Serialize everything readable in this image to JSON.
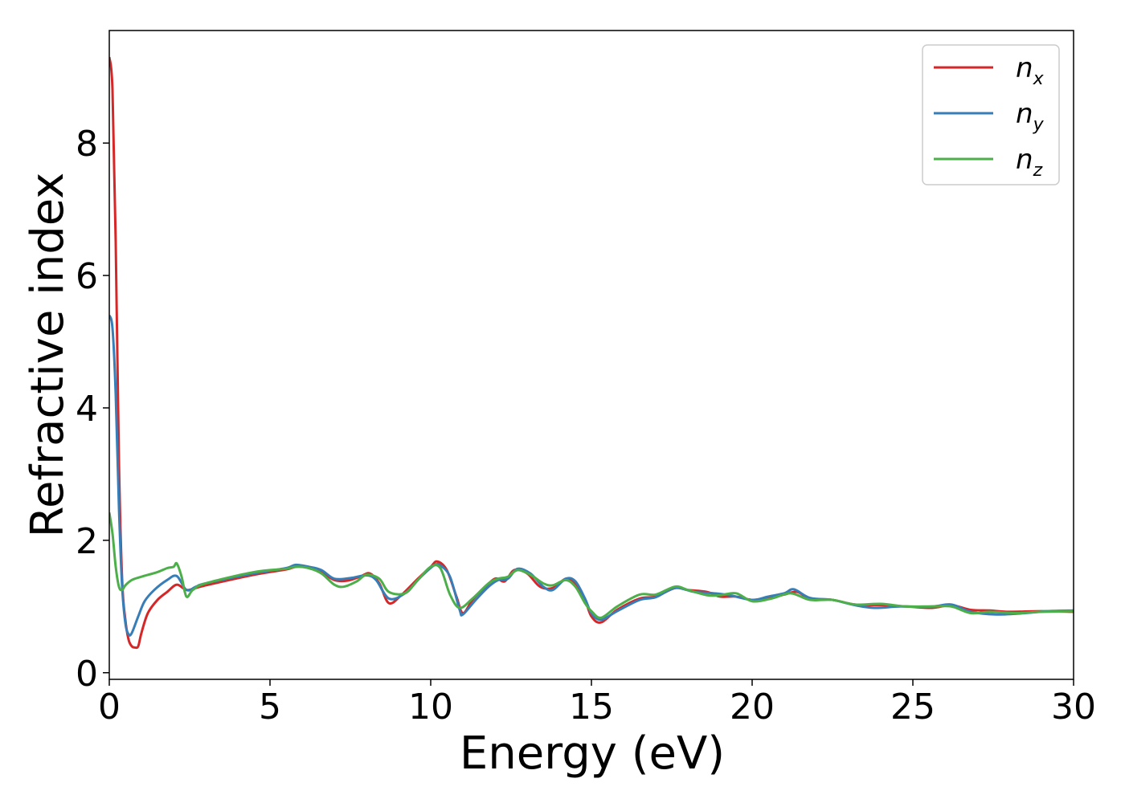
{
  "chart_data": {
    "type": "line",
    "xlabel": "Energy (eV)",
    "ylabel": "Refractive index",
    "xlim": [
      0,
      30
    ],
    "ylim": [
      -0.1,
      9.7
    ],
    "xticks": [
      0,
      5,
      10,
      15,
      20,
      25,
      30
    ],
    "yticks": [
      0,
      2,
      4,
      6,
      8
    ],
    "xtick_labels": [
      "0",
      "5",
      "10",
      "15",
      "20",
      "25",
      "30"
    ],
    "ytick_labels": [
      "0",
      "2",
      "4",
      "6",
      "8"
    ],
    "grid": false,
    "legend_position": "top-right",
    "series": [
      {
        "name": "n_x",
        "label_base": "n",
        "label_sub": "x",
        "color": "#d62728",
        "points": [
          [
            0,
            9.3
          ],
          [
            0.1,
            8.8
          ],
          [
            0.2,
            6.5
          ],
          [
            0.3,
            3.2
          ],
          [
            0.4,
            1.4
          ],
          [
            0.5,
            0.8
          ],
          [
            0.6,
            0.5
          ],
          [
            0.7,
            0.4
          ],
          [
            0.8,
            0.38
          ],
          [
            0.9,
            0.4
          ],
          [
            1.0,
            0.6
          ],
          [
            1.2,
            0.9
          ],
          [
            1.5,
            1.1
          ],
          [
            1.8,
            1.22
          ],
          [
            2.1,
            1.33
          ],
          [
            2.4,
            1.25
          ],
          [
            2.7,
            1.28
          ],
          [
            3.0,
            1.32
          ],
          [
            4.5,
            1.48
          ],
          [
            5.5,
            1.56
          ],
          [
            5.8,
            1.6
          ],
          [
            6.2,
            1.6
          ],
          [
            6.6,
            1.52
          ],
          [
            7.0,
            1.4
          ],
          [
            7.4,
            1.39
          ],
          [
            7.8,
            1.45
          ],
          [
            8.1,
            1.5
          ],
          [
            8.4,
            1.35
          ],
          [
            8.7,
            1.05
          ],
          [
            9.1,
            1.18
          ],
          [
            9.6,
            1.42
          ],
          [
            10.0,
            1.6
          ],
          [
            10.2,
            1.68
          ],
          [
            10.5,
            1.55
          ],
          [
            10.8,
            1.15
          ],
          [
            11.0,
            0.9
          ],
          [
            11.3,
            1.1
          ],
          [
            11.6,
            1.25
          ],
          [
            12.0,
            1.42
          ],
          [
            12.3,
            1.38
          ],
          [
            12.6,
            1.55
          ],
          [
            13.0,
            1.5
          ],
          [
            13.4,
            1.3
          ],
          [
            13.8,
            1.28
          ],
          [
            14.2,
            1.42
          ],
          [
            14.5,
            1.35
          ],
          [
            14.8,
            1.1
          ],
          [
            15.0,
            0.85
          ],
          [
            15.3,
            0.76
          ],
          [
            15.8,
            0.95
          ],
          [
            16.5,
            1.12
          ],
          [
            17.0,
            1.15
          ],
          [
            17.6,
            1.28
          ],
          [
            18.0,
            1.25
          ],
          [
            18.6,
            1.22
          ],
          [
            19.0,
            1.15
          ],
          [
            19.5,
            1.15
          ],
          [
            20.0,
            1.1
          ],
          [
            20.5,
            1.12
          ],
          [
            21.0,
            1.18
          ],
          [
            21.4,
            1.22
          ],
          [
            21.8,
            1.12
          ],
          [
            22.5,
            1.1
          ],
          [
            23.2,
            1.03
          ],
          [
            24.0,
            1.02
          ],
          [
            24.8,
            1.0
          ],
          [
            25.6,
            0.98
          ],
          [
            26.2,
            1.02
          ],
          [
            26.8,
            0.95
          ],
          [
            27.4,
            0.94
          ],
          [
            28.0,
            0.92
          ],
          [
            29.0,
            0.93
          ],
          [
            30.0,
            0.92
          ]
        ]
      },
      {
        "name": "n_y",
        "label_base": "n",
        "label_sub": "y",
        "color": "#377eb8",
        "points": [
          [
            0,
            5.4
          ],
          [
            0.1,
            5.2
          ],
          [
            0.2,
            4.2
          ],
          [
            0.3,
            2.5
          ],
          [
            0.4,
            1.3
          ],
          [
            0.5,
            0.75
          ],
          [
            0.6,
            0.58
          ],
          [
            0.7,
            0.6
          ],
          [
            0.9,
            0.85
          ],
          [
            1.1,
            1.08
          ],
          [
            1.4,
            1.25
          ],
          [
            1.8,
            1.4
          ],
          [
            2.1,
            1.46
          ],
          [
            2.4,
            1.25
          ],
          [
            2.7,
            1.3
          ],
          [
            3.0,
            1.35
          ],
          [
            4.5,
            1.5
          ],
          [
            5.5,
            1.58
          ],
          [
            5.8,
            1.63
          ],
          [
            6.2,
            1.6
          ],
          [
            6.6,
            1.55
          ],
          [
            7.0,
            1.42
          ],
          [
            7.5,
            1.43
          ],
          [
            8.0,
            1.47
          ],
          [
            8.3,
            1.4
          ],
          [
            8.7,
            1.12
          ],
          [
            9.2,
            1.2
          ],
          [
            9.7,
            1.45
          ],
          [
            10.1,
            1.62
          ],
          [
            10.3,
            1.62
          ],
          [
            10.6,
            1.45
          ],
          [
            10.9,
            0.95
          ],
          [
            11.0,
            0.88
          ],
          [
            11.4,
            1.1
          ],
          [
            11.8,
            1.3
          ],
          [
            12.1,
            1.4
          ],
          [
            12.4,
            1.42
          ],
          [
            12.7,
            1.57
          ],
          [
            13.1,
            1.5
          ],
          [
            13.5,
            1.3
          ],
          [
            13.8,
            1.25
          ],
          [
            14.2,
            1.42
          ],
          [
            14.5,
            1.38
          ],
          [
            14.8,
            1.12
          ],
          [
            15.0,
            0.9
          ],
          [
            15.3,
            0.8
          ],
          [
            15.8,
            0.93
          ],
          [
            16.5,
            1.1
          ],
          [
            17.0,
            1.14
          ],
          [
            17.6,
            1.28
          ],
          [
            18.2,
            1.22
          ],
          [
            18.8,
            1.2
          ],
          [
            19.3,
            1.17
          ],
          [
            20.0,
            1.1
          ],
          [
            20.5,
            1.15
          ],
          [
            21.0,
            1.2
          ],
          [
            21.3,
            1.26
          ],
          [
            21.8,
            1.13
          ],
          [
            22.5,
            1.1
          ],
          [
            23.2,
            1.02
          ],
          [
            23.8,
            0.98
          ],
          [
            24.6,
            1.0
          ],
          [
            25.6,
            1.0
          ],
          [
            26.2,
            1.03
          ],
          [
            26.8,
            0.92
          ],
          [
            27.6,
            0.88
          ],
          [
            28.5,
            0.9
          ],
          [
            29.2,
            0.93
          ],
          [
            30.0,
            0.94
          ]
        ]
      },
      {
        "name": "n_z",
        "label_base": "n",
        "label_sub": "z",
        "color": "#4daf4a",
        "points": [
          [
            0,
            2.42
          ],
          [
            0.1,
            2.1
          ],
          [
            0.2,
            1.6
          ],
          [
            0.3,
            1.3
          ],
          [
            0.4,
            1.25
          ],
          [
            0.5,
            1.32
          ],
          [
            0.7,
            1.4
          ],
          [
            1.0,
            1.45
          ],
          [
            1.5,
            1.52
          ],
          [
            1.8,
            1.58
          ],
          [
            2.0,
            1.6
          ],
          [
            2.1,
            1.65
          ],
          [
            2.25,
            1.45
          ],
          [
            2.4,
            1.15
          ],
          [
            2.6,
            1.25
          ],
          [
            3.0,
            1.35
          ],
          [
            4.5,
            1.52
          ],
          [
            5.5,
            1.57
          ],
          [
            5.8,
            1.6
          ],
          [
            6.2,
            1.58
          ],
          [
            6.6,
            1.5
          ],
          [
            7.0,
            1.33
          ],
          [
            7.3,
            1.3
          ],
          [
            7.7,
            1.38
          ],
          [
            8.0,
            1.48
          ],
          [
            8.4,
            1.42
          ],
          [
            8.7,
            1.22
          ],
          [
            9.2,
            1.2
          ],
          [
            9.6,
            1.4
          ],
          [
            10.0,
            1.6
          ],
          [
            10.3,
            1.58
          ],
          [
            10.6,
            1.18
          ],
          [
            10.9,
            0.98
          ],
          [
            11.3,
            1.12
          ],
          [
            11.8,
            1.35
          ],
          [
            12.1,
            1.42
          ],
          [
            12.4,
            1.45
          ],
          [
            12.7,
            1.55
          ],
          [
            13.1,
            1.48
          ],
          [
            13.5,
            1.35
          ],
          [
            13.8,
            1.32
          ],
          [
            14.2,
            1.4
          ],
          [
            14.5,
            1.3
          ],
          [
            14.8,
            1.05
          ],
          [
            15.0,
            0.93
          ],
          [
            15.3,
            0.83
          ],
          [
            15.8,
            1.0
          ],
          [
            16.5,
            1.18
          ],
          [
            17.0,
            1.18
          ],
          [
            17.6,
            1.3
          ],
          [
            18.0,
            1.25
          ],
          [
            18.6,
            1.17
          ],
          [
            19.0,
            1.17
          ],
          [
            19.5,
            1.2
          ],
          [
            20.0,
            1.08
          ],
          [
            20.6,
            1.12
          ],
          [
            21.2,
            1.2
          ],
          [
            21.8,
            1.1
          ],
          [
            22.5,
            1.1
          ],
          [
            23.2,
            1.03
          ],
          [
            24.0,
            1.04
          ],
          [
            24.8,
            1.0
          ],
          [
            25.6,
            1.0
          ],
          [
            26.2,
            1.0
          ],
          [
            26.8,
            0.9
          ],
          [
            27.4,
            0.92
          ],
          [
            28.2,
            0.9
          ],
          [
            29.0,
            0.92
          ],
          [
            30.0,
            0.93
          ]
        ]
      }
    ]
  }
}
